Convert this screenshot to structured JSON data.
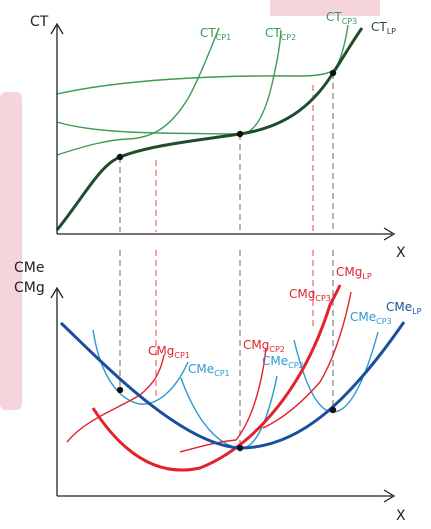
{
  "colors": {
    "axis": "#222222",
    "green_dark": "#1f4d2b",
    "green_light": "#3f9a52",
    "red": "#e3222b",
    "red_dash": "#f07070",
    "blue_dark": "#1b4f9c",
    "blue_light": "#2f98d0",
    "gray_dash": "#8a8a8a",
    "pink_bg": "#f6d4dc"
  },
  "top_panel": {
    "y_axis_label": "CT",
    "x_axis_label": "X",
    "curves": [
      {
        "id": "ct-cp1",
        "main": "CT",
        "sub": "CP1"
      },
      {
        "id": "ct-cp2",
        "main": "CT",
        "sub": "CP2"
      },
      {
        "id": "ct-cp3",
        "main": "CT",
        "sub": "CP3"
      },
      {
        "id": "ct-lp",
        "main": "CT",
        "sub": "LP"
      }
    ]
  },
  "bottom_panel": {
    "y_axis_label_1": "CMe",
    "y_axis_label_2": "CMg",
    "x_axis_label": "X",
    "curves": [
      {
        "id": "cmg-cp1",
        "main": "CMg",
        "sub": "CP1"
      },
      {
        "id": "cme-cp1",
        "main": "CMe",
        "sub": "CP1"
      },
      {
        "id": "cmg-cp2",
        "main": "CMg",
        "sub": "CP2"
      },
      {
        "id": "cme-cp2",
        "main": "CMe",
        "sub": "CP2"
      },
      {
        "id": "cmg-cp3",
        "main": "CMg",
        "sub": "CP3"
      },
      {
        "id": "cme-cp3",
        "main": "CMe",
        "sub": "CP3"
      },
      {
        "id": "cmg-lp",
        "main": "CMg",
        "sub": "LP"
      },
      {
        "id": "cme-lp",
        "main": "CMe",
        "sub": "LP"
      }
    ]
  }
}
